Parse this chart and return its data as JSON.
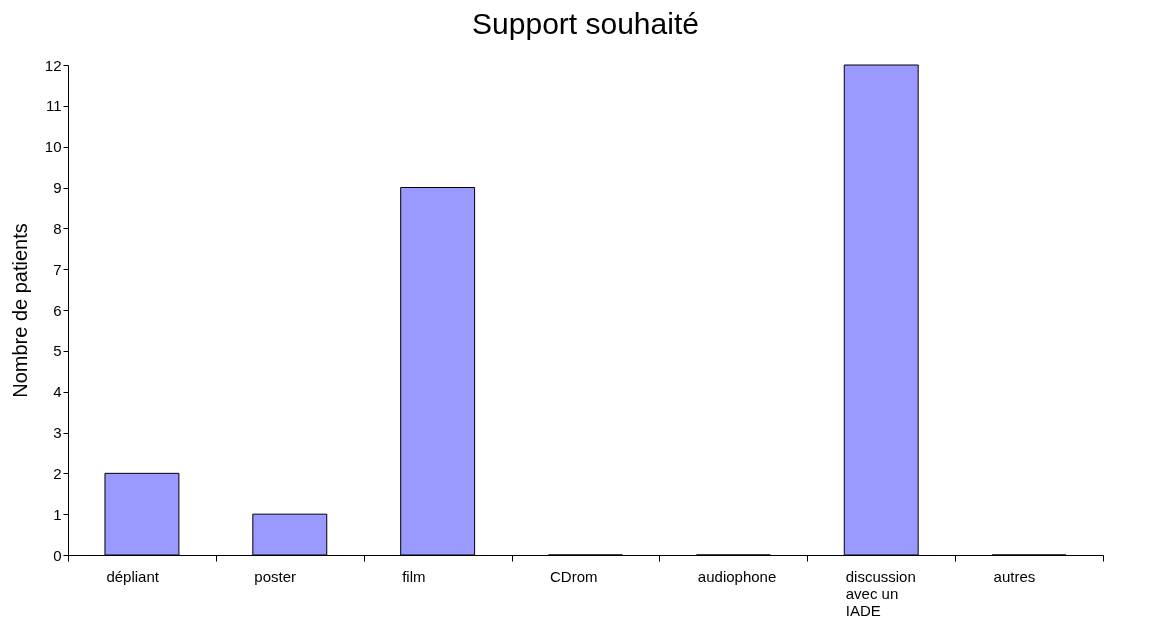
{
  "chart_data": {
    "type": "bar",
    "title": "Support souhaité",
    "ylabel": "Nombre de patients",
    "categories": [
      "dépliant",
      "poster",
      "film",
      "CDrom",
      "audiophone",
      "discussion avec un IADE",
      "autres"
    ],
    "values": [
      2,
      1,
      9,
      0,
      0,
      12,
      0
    ],
    "color": "#9999ff",
    "ylim": [
      0,
      12
    ],
    "yticks": [
      0,
      1,
      2,
      3,
      4,
      5,
      6,
      7,
      8,
      9,
      10,
      11,
      12
    ],
    "grid": false
  }
}
